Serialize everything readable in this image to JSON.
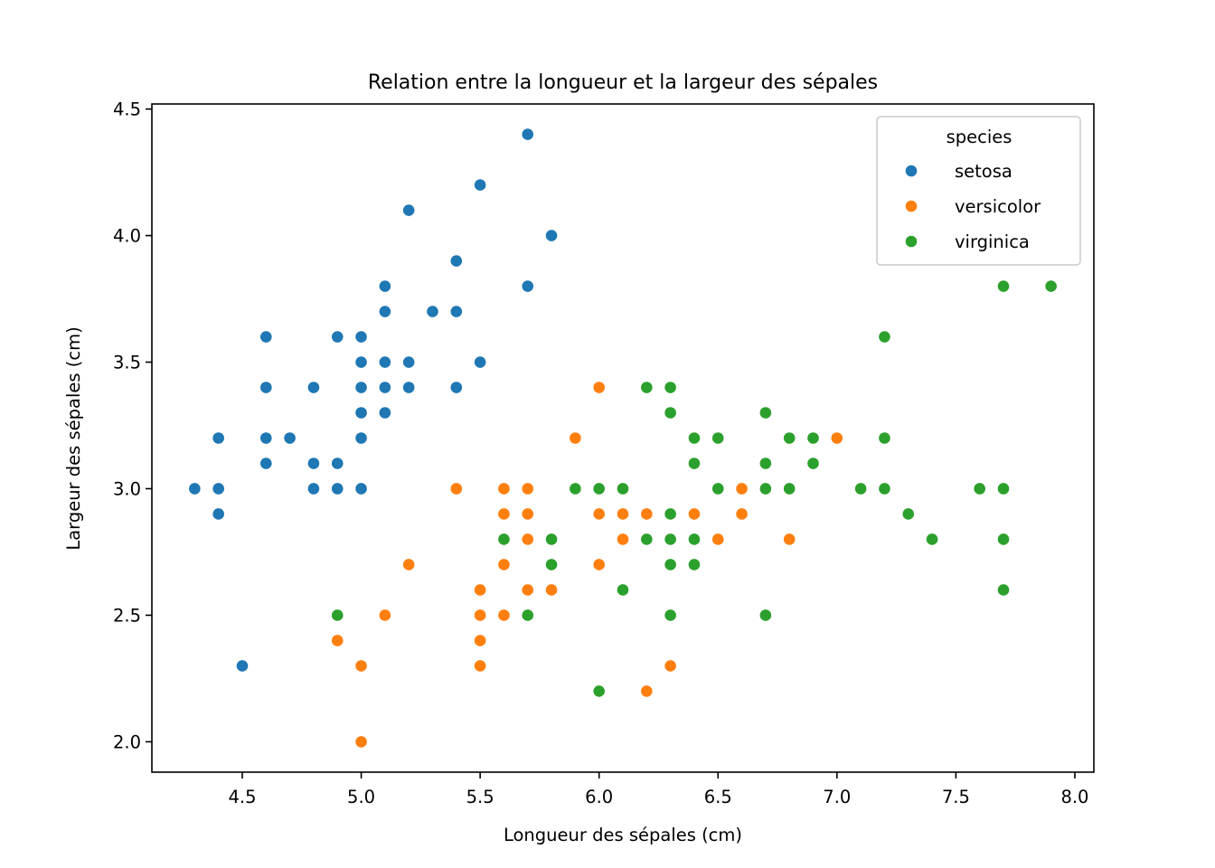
{
  "chart_data": {
    "type": "scatter",
    "title": "Relation entre la longueur et la largeur des sépales",
    "xlabel": "Longueur des sépales (cm)",
    "ylabel": "Largeur des sépales (cm)",
    "xlim": [
      4.12,
      8.08
    ],
    "ylim": [
      1.88,
      4.52
    ],
    "xticks": [
      4.5,
      5.0,
      5.5,
      6.0,
      6.5,
      7.0,
      7.5,
      8.0
    ],
    "xtick_labels": [
      "4.5",
      "5.0",
      "5.5",
      "6.0",
      "6.5",
      "7.0",
      "7.5",
      "8.0"
    ],
    "yticks": [
      2.0,
      2.5,
      3.0,
      3.5,
      4.0,
      4.5
    ],
    "ytick_labels": [
      "2.0",
      "2.5",
      "3.0",
      "3.5",
      "4.0",
      "4.5"
    ],
    "grid": false,
    "legend": {
      "title": "species",
      "placement": "top-right"
    },
    "series": [
      {
        "name": "setosa",
        "color": "#1f77b4",
        "points": [
          [
            4.3,
            3.0
          ],
          [
            4.4,
            3.0
          ],
          [
            4.4,
            3.2
          ],
          [
            4.4,
            2.9
          ],
          [
            4.5,
            2.3
          ],
          [
            4.6,
            3.6
          ],
          [
            4.6,
            3.4
          ],
          [
            4.6,
            3.2
          ],
          [
            4.6,
            3.1
          ],
          [
            4.7,
            3.2
          ],
          [
            4.8,
            3.4
          ],
          [
            4.8,
            3.1
          ],
          [
            4.8,
            3.0
          ],
          [
            4.9,
            3.6
          ],
          [
            4.9,
            3.1
          ],
          [
            4.9,
            3.0
          ],
          [
            5.0,
            3.6
          ],
          [
            5.0,
            3.5
          ],
          [
            5.0,
            3.4
          ],
          [
            5.0,
            3.3
          ],
          [
            5.0,
            3.2
          ],
          [
            5.0,
            3.0
          ],
          [
            5.1,
            3.8
          ],
          [
            5.1,
            3.7
          ],
          [
            5.1,
            3.5
          ],
          [
            5.1,
            3.4
          ],
          [
            5.1,
            3.3
          ],
          [
            5.2,
            4.1
          ],
          [
            5.2,
            3.5
          ],
          [
            5.2,
            3.4
          ],
          [
            5.3,
            3.7
          ],
          [
            5.4,
            3.9
          ],
          [
            5.4,
            3.7
          ],
          [
            5.4,
            3.4
          ],
          [
            5.5,
            4.2
          ],
          [
            5.5,
            3.5
          ],
          [
            5.7,
            4.4
          ],
          [
            5.7,
            3.8
          ],
          [
            5.8,
            4.0
          ]
        ]
      },
      {
        "name": "versicolor",
        "color": "#ff7f0e",
        "points": [
          [
            4.9,
            2.4
          ],
          [
            5.0,
            2.3
          ],
          [
            5.0,
            2.0
          ],
          [
            5.1,
            2.5
          ],
          [
            5.2,
            2.7
          ],
          [
            5.4,
            3.0
          ],
          [
            5.5,
            2.6
          ],
          [
            5.5,
            2.5
          ],
          [
            5.5,
            2.4
          ],
          [
            5.5,
            2.3
          ],
          [
            5.6,
            3.0
          ],
          [
            5.6,
            2.9
          ],
          [
            5.6,
            2.7
          ],
          [
            5.6,
            2.5
          ],
          [
            5.7,
            3.0
          ],
          [
            5.7,
            2.9
          ],
          [
            5.7,
            2.8
          ],
          [
            5.7,
            2.6
          ],
          [
            5.8,
            2.6
          ],
          [
            5.9,
            3.2
          ],
          [
            6.0,
            3.4
          ],
          [
            6.0,
            2.9
          ],
          [
            6.0,
            2.7
          ],
          [
            6.1,
            2.9
          ],
          [
            6.1,
            2.8
          ],
          [
            6.2,
            2.9
          ],
          [
            6.2,
            2.2
          ],
          [
            6.3,
            2.3
          ],
          [
            6.4,
            2.9
          ],
          [
            6.5,
            2.8
          ],
          [
            6.6,
            3.0
          ],
          [
            6.6,
            2.9
          ],
          [
            6.8,
            2.8
          ],
          [
            7.0,
            3.2
          ]
        ]
      },
      {
        "name": "virginica",
        "color": "#2ca02c",
        "points": [
          [
            4.9,
            2.5
          ],
          [
            5.6,
            2.8
          ],
          [
            5.7,
            2.5
          ],
          [
            5.8,
            2.8
          ],
          [
            5.8,
            2.7
          ],
          [
            5.9,
            3.0
          ],
          [
            6.0,
            3.0
          ],
          [
            6.0,
            2.2
          ],
          [
            6.1,
            3.0
          ],
          [
            6.1,
            2.6
          ],
          [
            6.2,
            3.4
          ],
          [
            6.2,
            2.8
          ],
          [
            6.3,
            3.4
          ],
          [
            6.3,
            3.3
          ],
          [
            6.3,
            2.9
          ],
          [
            6.3,
            2.8
          ],
          [
            6.3,
            2.7
          ],
          [
            6.3,
            2.5
          ],
          [
            6.4,
            3.2
          ],
          [
            6.4,
            3.1
          ],
          [
            6.4,
            2.8
          ],
          [
            6.4,
            2.7
          ],
          [
            6.5,
            3.2
          ],
          [
            6.5,
            3.0
          ],
          [
            6.7,
            3.3
          ],
          [
            6.7,
            3.1
          ],
          [
            6.7,
            3.0
          ],
          [
            6.7,
            2.5
          ],
          [
            6.8,
            3.2
          ],
          [
            6.8,
            3.0
          ],
          [
            6.9,
            3.2
          ],
          [
            6.9,
            3.1
          ],
          [
            7.1,
            3.0
          ],
          [
            7.2,
            3.6
          ],
          [
            7.2,
            3.2
          ],
          [
            7.2,
            3.0
          ],
          [
            7.3,
            2.9
          ],
          [
            7.4,
            2.8
          ],
          [
            7.6,
            3.0
          ],
          [
            7.7,
            3.8
          ],
          [
            7.7,
            3.0
          ],
          [
            7.7,
            2.8
          ],
          [
            7.7,
            2.6
          ],
          [
            7.9,
            3.8
          ]
        ]
      }
    ]
  }
}
